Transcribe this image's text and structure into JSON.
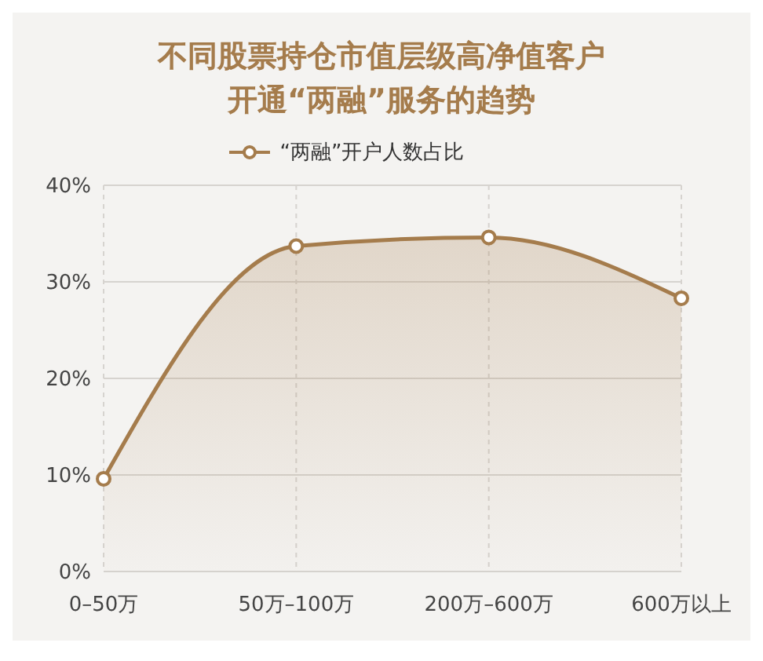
{
  "chart_data": {
    "type": "area",
    "title": "不同股票持仓市值层级高净值客户开通“两融”服务的趋势",
    "categories": [
      "0–50万",
      "50万–100万",
      "200万–600万",
      "600万以上"
    ],
    "series": [
      {
        "name": "“两融”开户人数占比",
        "color": "#a57c4c",
        "values": [
          9.6,
          33.7,
          34.6,
          28.3
        ]
      }
    ],
    "ylim": [
      0,
      40
    ],
    "yticks": [
      {
        "value": 0,
        "label": "0%"
      },
      {
        "value": 10,
        "label": "10%"
      },
      {
        "value": 20,
        "label": "20%"
      },
      {
        "value": 30,
        "label": "30%"
      },
      {
        "value": 40,
        "label": "40%"
      }
    ],
    "grid": true,
    "legend": "top",
    "marker": "circle",
    "line_style": "solid"
  }
}
